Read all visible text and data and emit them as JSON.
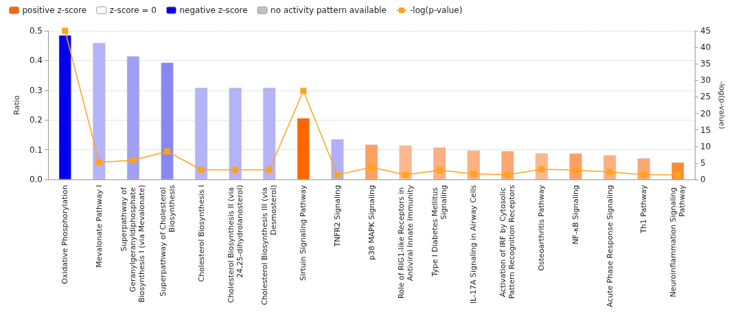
{
  "chart_data": {
    "type": "bar",
    "ylabel": "Ratio",
    "y2label": "-log(p-value)",
    "categories": [
      "Oxidative Phosphorylation",
      "Mevalonate Pathway I",
      "Superpathway of Geranylgeranyldiphosphate Biosynthesis I (via Mevalonate)",
      "Superpathway of Cholesterol Biosynthesis",
      "Cholesterol Biosynthesis I",
      "Cholesterol Biosynthesis II (via 24,25-dihydrolanosterol)",
      "Cholesterol Biosynthesis III (via Desmosterol)",
      "Sirtuin Signaling Pathway",
      "TNFR2 Signaling",
      "p38 MAPK Signaling",
      "Role of RIG1-like Receptors in Antiviral Innate Immunity",
      "Type I Diabetes Mellitus Signaling",
      "IL-17A Signaling in Airway Cells",
      "Activation of IRF by Cytosolic Pattern Recognition Receptors",
      "Osteoarthritis Pathway",
      "NF-κB Signaling",
      "Acute Phase Response Signaling",
      "Th1 Pathway",
      "Neuroinflammation Signaling Pathway"
    ],
    "series": [
      {
        "name": "positive z-score",
        "color": "#ff6600",
        "values": [
          null,
          null,
          null,
          null,
          null,
          null,
          null,
          0.206,
          null,
          0.117,
          0.114,
          0.107,
          0.097,
          0.095,
          0.088,
          0.087,
          0.081,
          0.071,
          0.057
        ],
        "colors": [
          null,
          null,
          null,
          null,
          null,
          null,
          null,
          "#ff6600",
          null,
          "#fda060",
          "#fdb890",
          "#fdb080",
          "#fdb080",
          "#fda870",
          "#fdb890",
          "#fda060",
          "#fdb080",
          "#fda870",
          "#fd8c30"
        ]
      },
      {
        "name": "z-score = 0",
        "color": "#ffffff",
        "values": [
          null,
          null,
          null,
          null,
          null,
          null,
          null,
          null,
          null,
          null,
          null,
          null,
          null,
          null,
          null,
          null,
          null,
          null,
          null
        ]
      },
      {
        "name": "negative z-score",
        "color": "#0000ee",
        "values": [
          0.485,
          0.459,
          0.414,
          0.393,
          0.308,
          0.308,
          0.308,
          null,
          0.135,
          null,
          null,
          null,
          null,
          null,
          null,
          null,
          null,
          null,
          null
        ],
        "colors": [
          "#0000ee",
          "#b4b4f8",
          "#a0a0f4",
          "#8888f2",
          "#b4b4f8",
          "#b4b4f8",
          "#b4b4f8",
          null,
          "#b0b0f8",
          null,
          null,
          null,
          null,
          null,
          null,
          null,
          null,
          null,
          null
        ]
      },
      {
        "name": "no activity pattern available",
        "color": "#c0c0c0",
        "values": [
          null,
          null,
          null,
          null,
          null,
          null,
          null,
          null,
          null,
          null,
          null,
          null,
          null,
          null,
          null,
          null,
          null,
          null,
          null
        ]
      },
      {
        "name": "-log(p-value)",
        "type": "line",
        "axis": "y2",
        "color": "#ffa31a",
        "marker": "square",
        "values": [
          45,
          5.2,
          5.8,
          8.5,
          2.9,
          2.9,
          2.9,
          26.8,
          1.4,
          3.7,
          1.4,
          2.8,
          1.7,
          1.4,
          3.1,
          2.8,
          2.3,
          1.4,
          1.4
        ]
      }
    ],
    "ylim": [
      0,
      0.5
    ],
    "yticks": [
      {
        "value": 0,
        "label": "0.0"
      },
      0.1,
      0.2,
      0.3,
      0.4,
      0.5
    ],
    "y2lim": [
      0,
      45
    ],
    "y2ticks": [
      0,
      5,
      10,
      15,
      20,
      25,
      30,
      35,
      40,
      45
    ],
    "grid": "y",
    "legend": "top left"
  }
}
